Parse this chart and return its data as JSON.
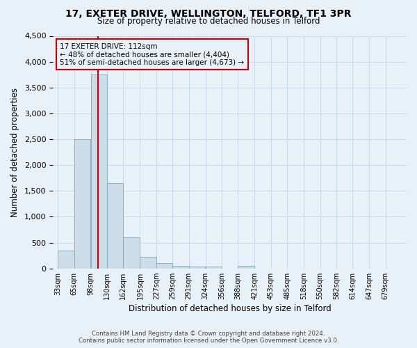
{
  "title": "17, EXETER DRIVE, WELLINGTON, TELFORD, TF1 3PR",
  "subtitle": "Size of property relative to detached houses in Telford",
  "xlabel": "Distribution of detached houses by size in Telford",
  "ylabel": "Number of detached properties",
  "property_label": "17 EXETER DRIVE: 112sqm",
  "annotation_line1": "← 48% of detached houses are smaller (4,404)",
  "annotation_line2": "51% of semi-detached houses are larger (4,673) →",
  "footer_line1": "Contains HM Land Registry data © Crown copyright and database right 2024.",
  "footer_line2": "Contains public sector information licensed under the Open Government Licence v3.0.",
  "bins": [
    33,
    65,
    98,
    130,
    162,
    195,
    227,
    259,
    291,
    324,
    356,
    388,
    421,
    453,
    485,
    518,
    550,
    582,
    614,
    647,
    679
  ],
  "values": [
    350,
    2500,
    3750,
    1650,
    600,
    220,
    100,
    55,
    40,
    30,
    0,
    55,
    0,
    0,
    0,
    0,
    0,
    0,
    0,
    0
  ],
  "bar_color": "#ccdce8",
  "bar_edge_color": "#7aaac8",
  "vline_color": "#cc0000",
  "vline_x": 112,
  "annotation_box_color": "#cc0000",
  "grid_color": "#c8d8e8",
  "background_color": "#e8f0f8",
  "ylim": [
    0,
    4500
  ],
  "yticks": [
    0,
    500,
    1000,
    1500,
    2000,
    2500,
    3000,
    3500,
    4000,
    4500
  ]
}
